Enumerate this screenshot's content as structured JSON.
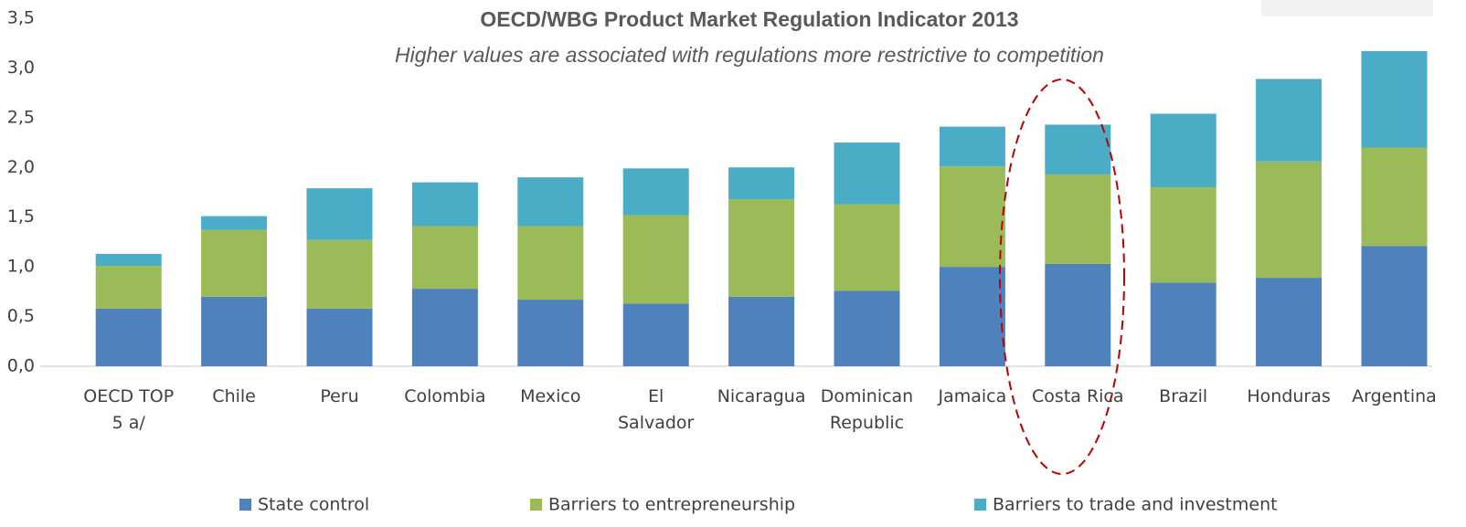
{
  "chart_data": {
    "type": "stacked_bar",
    "title": "OECD/WBG Product Market Regulation Indicator 2013",
    "subtitle": "Higher values are associated with regulations more restrictive to competition",
    "categories": [
      "OECD TOP\n5 a/",
      "Chile",
      "Peru",
      "Colombia",
      "Mexico",
      "El\nSalvador",
      "Nicaragua",
      "Dominican\nRepublic",
      "Jamaica",
      "Costa Rica",
      "Brazil",
      "Honduras",
      "Argentina"
    ],
    "series": [
      {
        "name": "State control",
        "color": "#4f81bd",
        "values": [
          0.58,
          0.7,
          0.58,
          0.78,
          0.67,
          0.63,
          0.7,
          0.76,
          1.0,
          1.03,
          0.84,
          0.89,
          1.21
        ]
      },
      {
        "name": "Barriers to entrepreneurship",
        "color": "#9bbb59",
        "values": [
          0.43,
          0.67,
          0.69,
          0.63,
          0.74,
          0.89,
          0.98,
          0.87,
          1.01,
          0.9,
          0.96,
          1.17,
          0.99
        ]
      },
      {
        "name": "Barriers to trade and investment",
        "color": "#4bacc6",
        "values": [
          0.12,
          0.14,
          0.52,
          0.44,
          0.49,
          0.47,
          0.32,
          0.62,
          0.4,
          0.5,
          0.74,
          0.83,
          0.97
        ]
      }
    ],
    "ylim": [
      0,
      3.5
    ],
    "yticks": [
      {
        "value": 0,
        "label": "0,0"
      },
      {
        "value": 0.5,
        "label": "0,5"
      },
      {
        "value": 1,
        "label": "1,0"
      },
      {
        "value": 1.5,
        "label": "1,5"
      },
      {
        "value": 2,
        "label": "2,0"
      },
      {
        "value": 2.5,
        "label": "2,5"
      },
      {
        "value": 3,
        "label": "3,0"
      },
      {
        "value": 3.5,
        "label": "3,5"
      }
    ],
    "grid": false,
    "legend": "bottom"
  }
}
